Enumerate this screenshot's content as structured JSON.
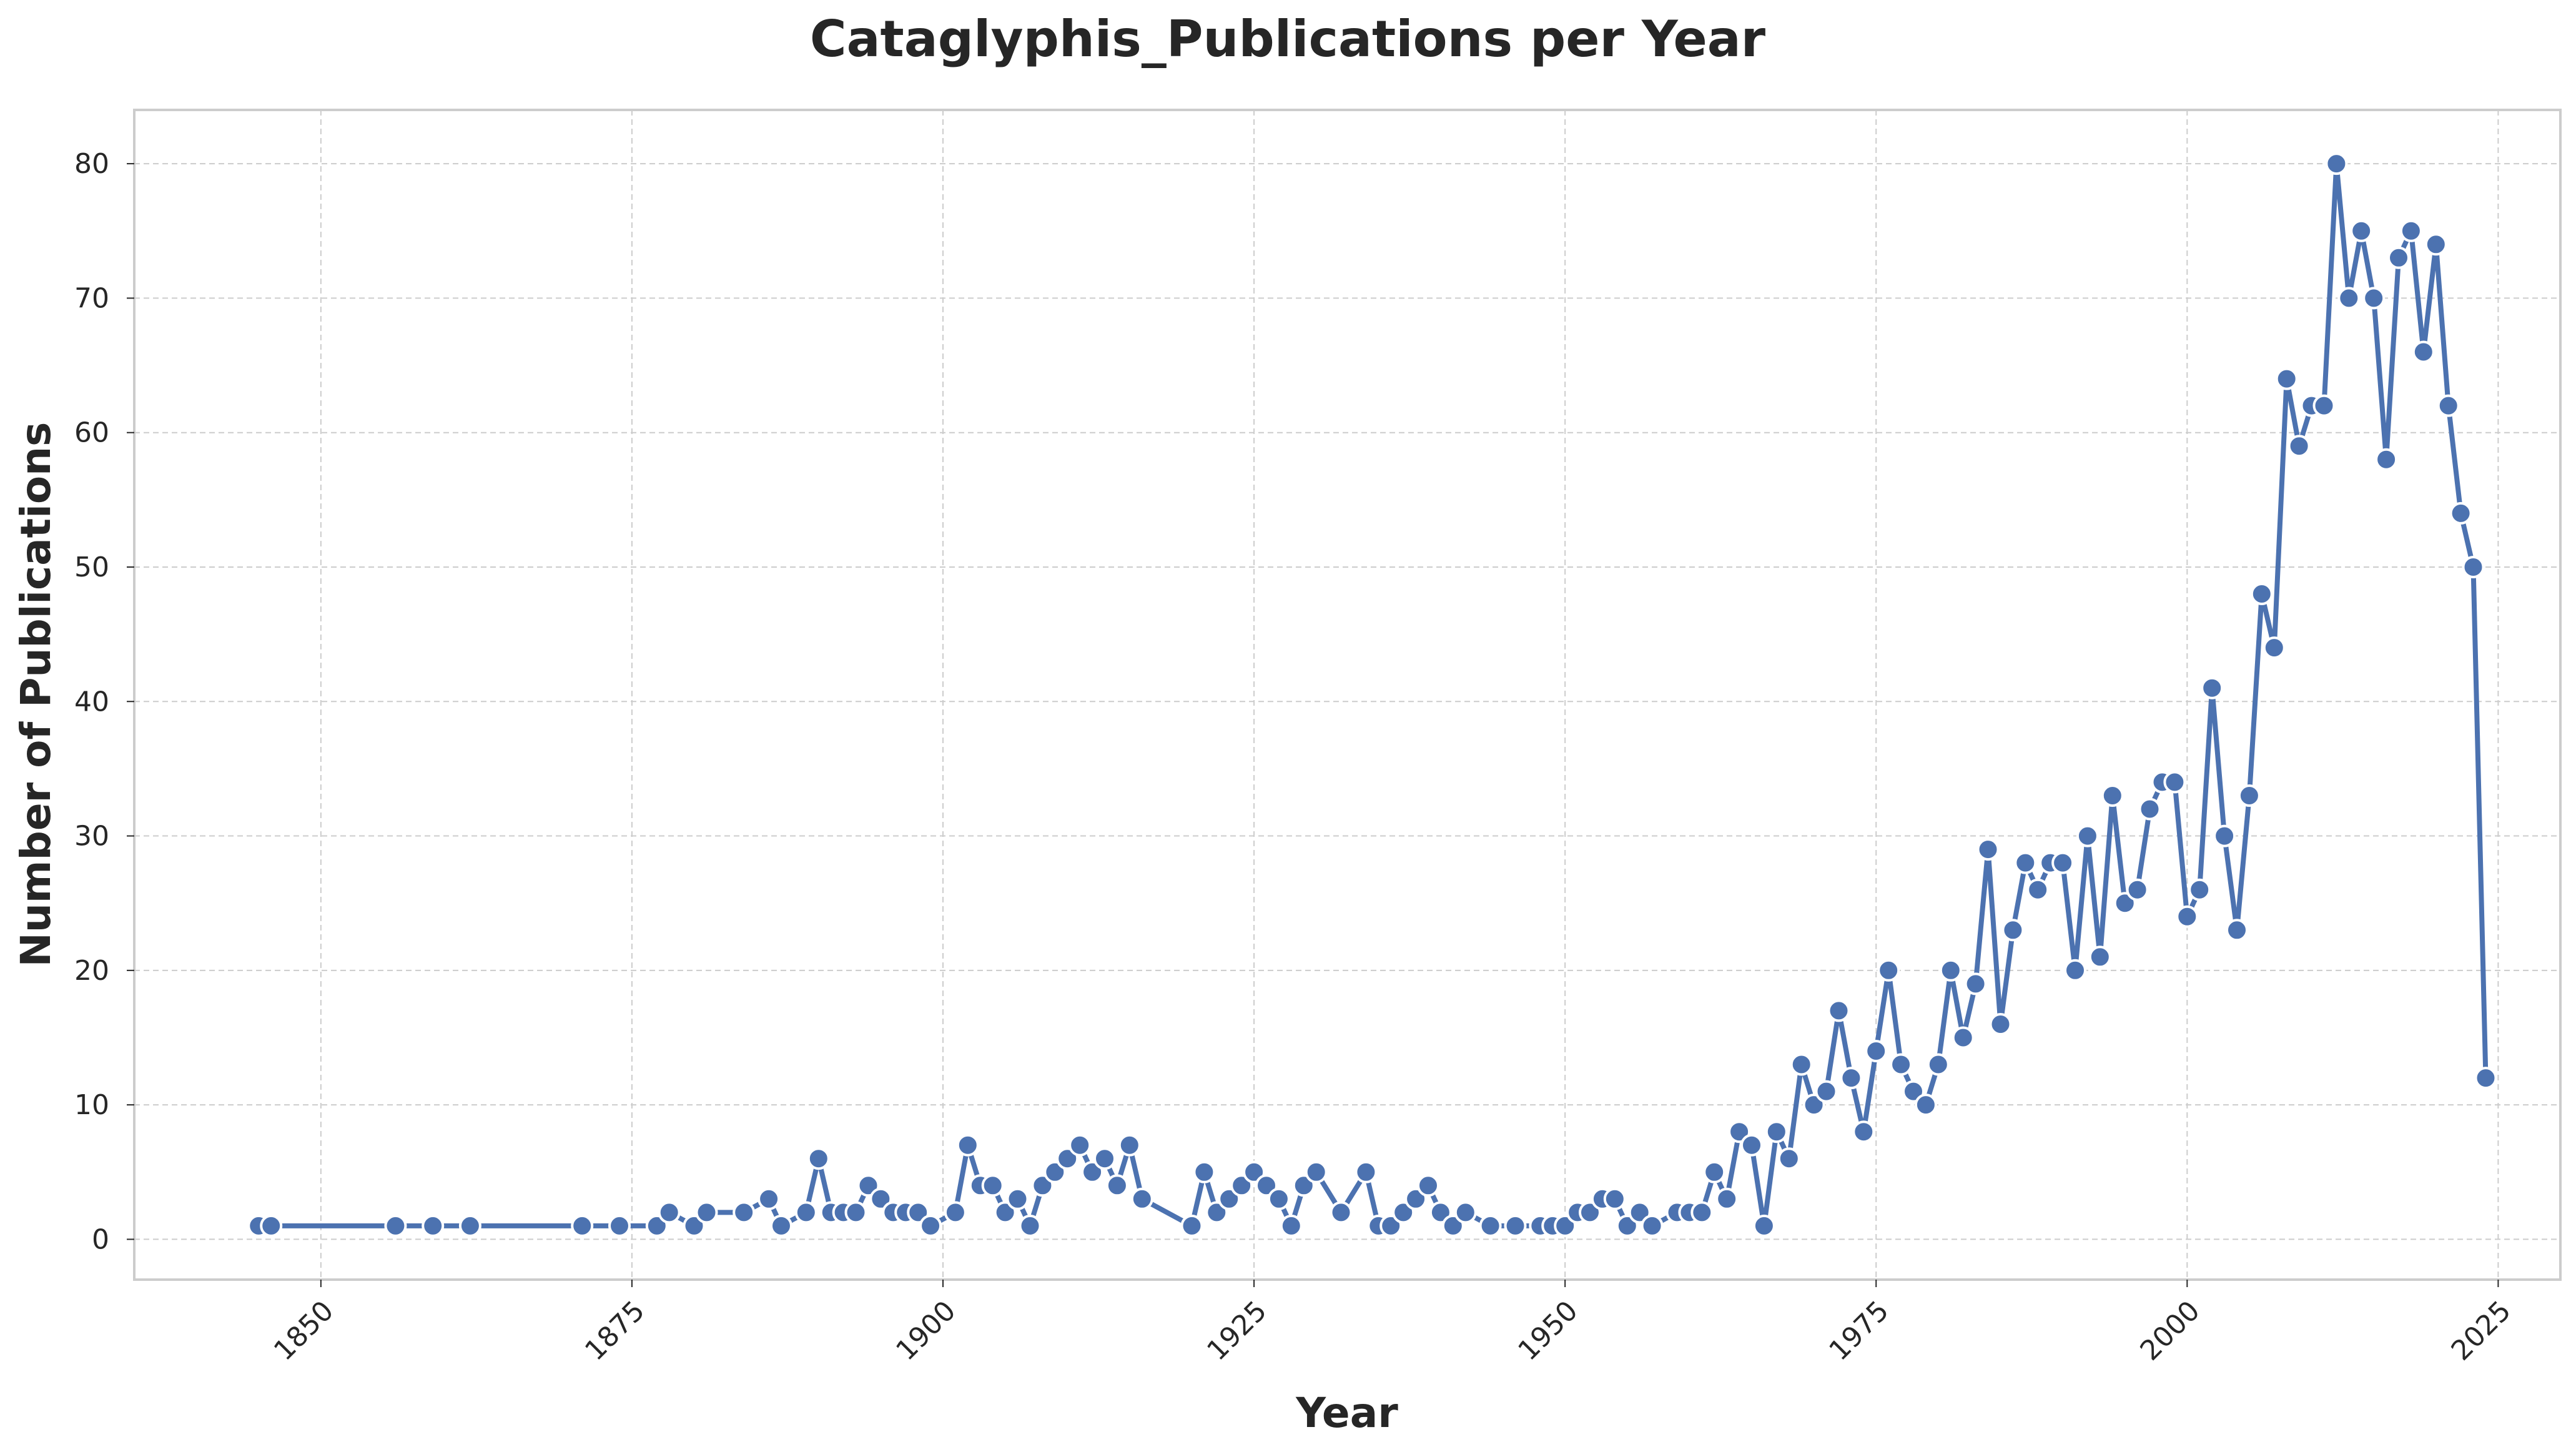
{
  "chart_data": {
    "type": "line",
    "title": "Cataglyphis_Publications per Year",
    "xlabel": "Year",
    "ylabel": "Number of Publications",
    "xlim": [
      1835,
      2030
    ],
    "ylim": [
      -3,
      84
    ],
    "xticks": [
      1850,
      1875,
      1900,
      1925,
      1950,
      1975,
      2000,
      2025
    ],
    "yticks": [
      0,
      10,
      20,
      30,
      40,
      50,
      60,
      70,
      80
    ],
    "grid": true,
    "legend": "none",
    "line_color": "#4c72b0",
    "marker": "circle",
    "series": [
      {
        "x": [
          1845,
          1846,
          1856,
          1859,
          1862,
          1871,
          1874,
          1877,
          1878,
          1880,
          1881,
          1884,
          1886,
          1887,
          1889,
          1890,
          1891,
          1892,
          1893,
          1894,
          1895,
          1896,
          1897,
          1898,
          1899,
          1901,
          1902,
          1903,
          1904,
          1905,
          1906,
          1907,
          1908,
          1909,
          1910,
          1911,
          1912,
          1913,
          1914,
          1915,
          1916,
          1920,
          1921,
          1922,
          1923,
          1924,
          1925,
          1926,
          1927,
          1928,
          1929,
          1930,
          1932,
          1934,
          1935,
          1936,
          1937,
          1938,
          1939,
          1940,
          1941,
          1942,
          1944,
          1946,
          1948,
          1949,
          1950,
          1951,
          1952,
          1953,
          1954,
          1955,
          1956,
          1957,
          1959,
          1960,
          1961,
          1962,
          1963,
          1964,
          1965,
          1966,
          1967,
          1968,
          1969,
          1970,
          1971,
          1972,
          1973,
          1974,
          1975,
          1976,
          1977,
          1978,
          1979,
          1980,
          1981,
          1982,
          1983,
          1984,
          1985,
          1986,
          1987,
          1988,
          1989,
          1990,
          1991,
          1992,
          1993,
          1994,
          1995,
          1996,
          1997,
          1998,
          1999,
          2000,
          2001,
          2002,
          2003,
          2004,
          2005,
          2006,
          2007,
          2008,
          2009,
          2010,
          2011,
          2012,
          2013,
          2014,
          2015,
          2016,
          2017,
          2018,
          2019,
          2020,
          2021,
          2022,
          2023,
          2024
        ],
        "y": [
          1,
          1,
          1,
          1,
          1,
          1,
          1,
          1,
          2,
          1,
          2,
          2,
          3,
          1,
          2,
          6,
          2,
          2,
          2,
          4,
          3,
          2,
          2,
          2,
          1,
          2,
          7,
          4,
          4,
          2,
          3,
          1,
          4,
          5,
          6,
          7,
          5,
          6,
          4,
          7,
          3,
          1,
          5,
          2,
          3,
          4,
          5,
          4,
          3,
          1,
          4,
          5,
          2,
          5,
          1,
          1,
          2,
          3,
          4,
          2,
          1,
          2,
          1,
          1,
          1,
          1,
          1,
          2,
          2,
          3,
          3,
          1,
          2,
          1,
          2,
          2,
          2,
          5,
          3,
          8,
          7,
          1,
          8,
          6,
          13,
          10,
          11,
          17,
          12,
          8,
          14,
          20,
          13,
          11,
          10,
          13,
          20,
          15,
          19,
          29,
          16,
          23,
          28,
          26,
          28,
          28,
          20,
          30,
          21,
          33,
          25,
          26,
          32,
          34,
          34,
          24,
          26,
          41,
          30,
          23,
          33,
          48,
          44,
          64,
          59,
          62,
          62,
          80,
          70,
          75,
          70,
          58,
          73,
          75,
          66,
          74,
          62,
          54,
          50,
          12
        ]
      }
    ]
  }
}
